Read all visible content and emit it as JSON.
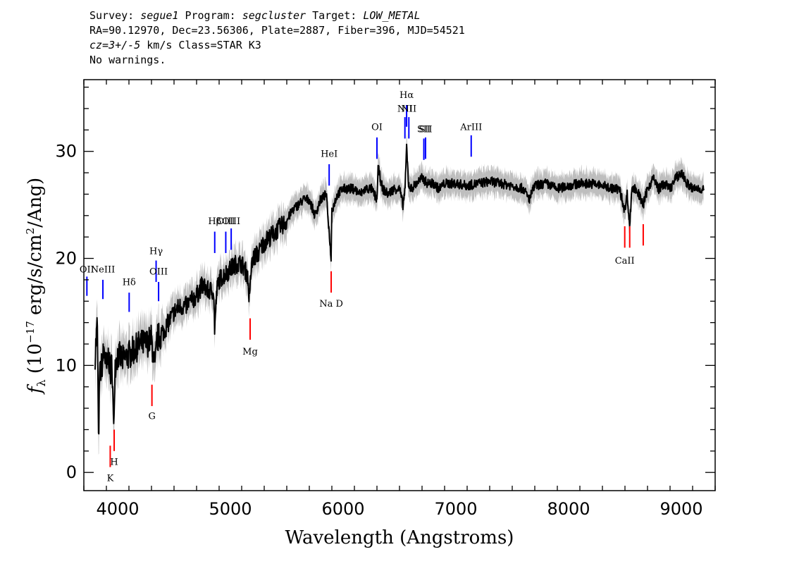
{
  "header": {
    "survey_label": "Survey:",
    "survey": "segue1",
    "program_label": "Program:",
    "program": "segcluster",
    "target_label": "Target:",
    "target": "LOW_METAL",
    "line2": "RA=90.12970, Dec=23.56306, Plate=2887, Fiber=396, MJD=54521",
    "cz_label": "cz=3+/-5",
    "line3_rest": " km/s Class=STAR K3",
    "line4": "No warnings."
  },
  "chart_data": {
    "type": "line",
    "xlabel": "Wavelength (Angstroms)",
    "ylabel": "f_λ (10^-17 erg/s/cm^2/Ang)",
    "xlim": [
      3700,
      9300
    ],
    "ylim": [
      -1.7,
      36.7
    ],
    "xticks": [
      4000,
      5000,
      6000,
      7000,
      8000,
      9000
    ],
    "yticks": [
      0,
      10,
      20,
      30
    ],
    "colors": {
      "flux": "#000000",
      "error": "#bebebe",
      "emission": "#0000ff",
      "absorption": "#ff0000"
    },
    "series": [
      {
        "x": [
          3800,
          3820,
          3830,
          3840,
          3860,
          3880,
          3900,
          3920,
          3935,
          3950,
          3965,
          3975,
          4000,
          4050,
          4100,
          4150,
          4200,
          4250,
          4300,
          4330,
          4350,
          4400,
          4450,
          4500,
          4550,
          4600,
          4650,
          4700,
          4750,
          4800,
          4850,
          4860,
          4880,
          4900,
          4950,
          5000,
          5050,
          5100,
          5150,
          5170,
          5180,
          5200,
          5250,
          5300,
          5350,
          5400,
          5450,
          5500,
          5550,
          5600,
          5650,
          5700,
          5750,
          5800,
          5850,
          5880,
          5893,
          5900,
          5950,
          6000,
          6050,
          6100,
          6150,
          6200,
          6250,
          6300,
          6310,
          6350,
          6400,
          6450,
          6500,
          6530,
          6550,
          6563,
          6580,
          6600,
          6650,
          6700,
          6750,
          6800,
          6850,
          6900,
          6950,
          7000,
          7100,
          7200,
          7300,
          7400,
          7500,
          7600,
          7650,
          7700,
          7800,
          7900,
          8000,
          8100,
          8200,
          8300,
          8400,
          8450,
          8498,
          8520,
          8542,
          8560,
          8600,
          8662,
          8700,
          8750,
          8800,
          8850,
          8900,
          8950,
          9000,
          9050,
          9100,
          9150,
          9200
        ],
        "y": [
          11.0,
          14.0,
          2.5,
          9.0,
          10.0,
          11.5,
          9.5,
          11.0,
          9.0,
          10.5,
          3.5,
          10.0,
          11.0,
          10.5,
          11.0,
          11.5,
          12.0,
          12.0,
          12.5,
          9.5,
          12.5,
          13.0,
          14.0,
          15.0,
          15.5,
          15.5,
          16.0,
          16.5,
          17.5,
          17.0,
          17.0,
          13.5,
          17.0,
          18.0,
          18.5,
          19.0,
          19.5,
          19.5,
          18.5,
          16.0,
          18.5,
          20.0,
          20.5,
          21.5,
          22.0,
          22.5,
          23.0,
          23.5,
          24.5,
          25.0,
          25.5,
          25.5,
          24.0,
          25.5,
          26.0,
          22.0,
          20.0,
          24.5,
          26.0,
          26.5,
          26.5,
          26.5,
          26.0,
          26.5,
          26.5,
          25.5,
          28.5,
          26.5,
          26.0,
          26.5,
          26.5,
          25.0,
          26.5,
          30.5,
          27.0,
          26.5,
          27.0,
          27.5,
          27.0,
          27.0,
          26.5,
          27.0,
          27.0,
          27.0,
          26.8,
          27.0,
          27.2,
          27.0,
          26.8,
          26.5,
          25.5,
          26.8,
          27.0,
          26.5,
          26.8,
          27.0,
          27.0,
          26.8,
          26.5,
          26.5,
          24.5,
          26.0,
          23.0,
          26.5,
          26.5,
          25.0,
          26.5,
          27.5,
          26.5,
          27.0,
          26.5,
          27.5,
          28.0,
          27.0,
          26.5,
          26.5,
          26.5
        ]
      }
    ],
    "emission_lines": [
      {
        "label": "OII",
        "wave": 3727,
        "y1": 16.5,
        "y2": 18.3,
        "label_y": 18.7
      },
      {
        "label": "NeIII",
        "wave": 3869,
        "y1": 16.2,
        "y2": 18.0,
        "label_y": 18.7
      },
      {
        "label": "Hδ",
        "wave": 4102,
        "y1": 15.0,
        "y2": 16.8,
        "label_y": 17.5
      },
      {
        "label": "Hγ",
        "wave": 4341,
        "y1": 17.8,
        "y2": 19.8,
        "label_y": 20.4
      },
      {
        "label": "OIII",
        "wave": 4363,
        "y1": 16.0,
        "y2": 17.8,
        "label_y": 18.5
      },
      {
        "label": "Hβ",
        "wave": 4861,
        "y1": 20.5,
        "y2": 22.5,
        "label_y": 23.2
      },
      {
        "label": "OIII",
        "wave": 4959,
        "y1": 20.5,
        "y2": 22.5,
        "label_y": 23.2
      },
      {
        "label": "OIII",
        "wave": 5007,
        "y1": 20.8,
        "y2": 22.8,
        "label_y": 23.2
      },
      {
        "label": "HeI",
        "wave": 5876,
        "y1": 26.8,
        "y2": 28.8,
        "label_y": 29.5
      },
      {
        "label": "OI",
        "wave": 6300,
        "y1": 29.3,
        "y2": 31.3,
        "label_y": 32.0
      },
      {
        "label": "NII",
        "wave": 6548,
        "y1": 31.2,
        "y2": 33.2,
        "label_y": 33.7
      },
      {
        "label": "Hα",
        "wave": 6563,
        "y1": 32.3,
        "y2": 34.3,
        "label_y": 35.0
      },
      {
        "label": "NII",
        "wave": 6583,
        "y1": 31.2,
        "y2": 33.2,
        "label_y": 33.7
      },
      {
        "label": "SII",
        "wave": 6716,
        "y1": 29.2,
        "y2": 31.2,
        "label_y": 31.8
      },
      {
        "label": "SII",
        "wave": 6731,
        "y1": 29.3,
        "y2": 31.3,
        "label_y": 31.8
      },
      {
        "label": "ArIII",
        "wave": 7136,
        "y1": 29.5,
        "y2": 31.5,
        "label_y": 32.0
      }
    ],
    "absorption_lines": [
      {
        "label": "K",
        "wave": 3934,
        "y1": 0.5,
        "y2": 2.5,
        "label_y": -0.8
      },
      {
        "label": "H",
        "wave": 3969,
        "y1": 2.0,
        "y2": 4.0,
        "label_y": 0.7
      },
      {
        "label": "G",
        "wave": 4304,
        "y1": 6.2,
        "y2": 8.2,
        "label_y": 5.0
      },
      {
        "label": "Mg",
        "wave": 5175,
        "y1": 12.4,
        "y2": 14.4,
        "label_y": 11.0
      },
      {
        "label": "Na D",
        "wave": 5894,
        "y1": 16.8,
        "y2": 18.8,
        "label_y": 15.5
      },
      {
        "label": "CaII",
        "wave": 8498,
        "y1": 21.0,
        "y2": 23.0,
        "label_y": 19.5
      },
      {
        "label": "",
        "wave": 8542,
        "y1": 21.0,
        "y2": 23.0,
        "label_y": 0
      },
      {
        "label": "",
        "wave": 8662,
        "y1": 21.2,
        "y2": 23.2,
        "label_y": 0
      }
    ]
  }
}
